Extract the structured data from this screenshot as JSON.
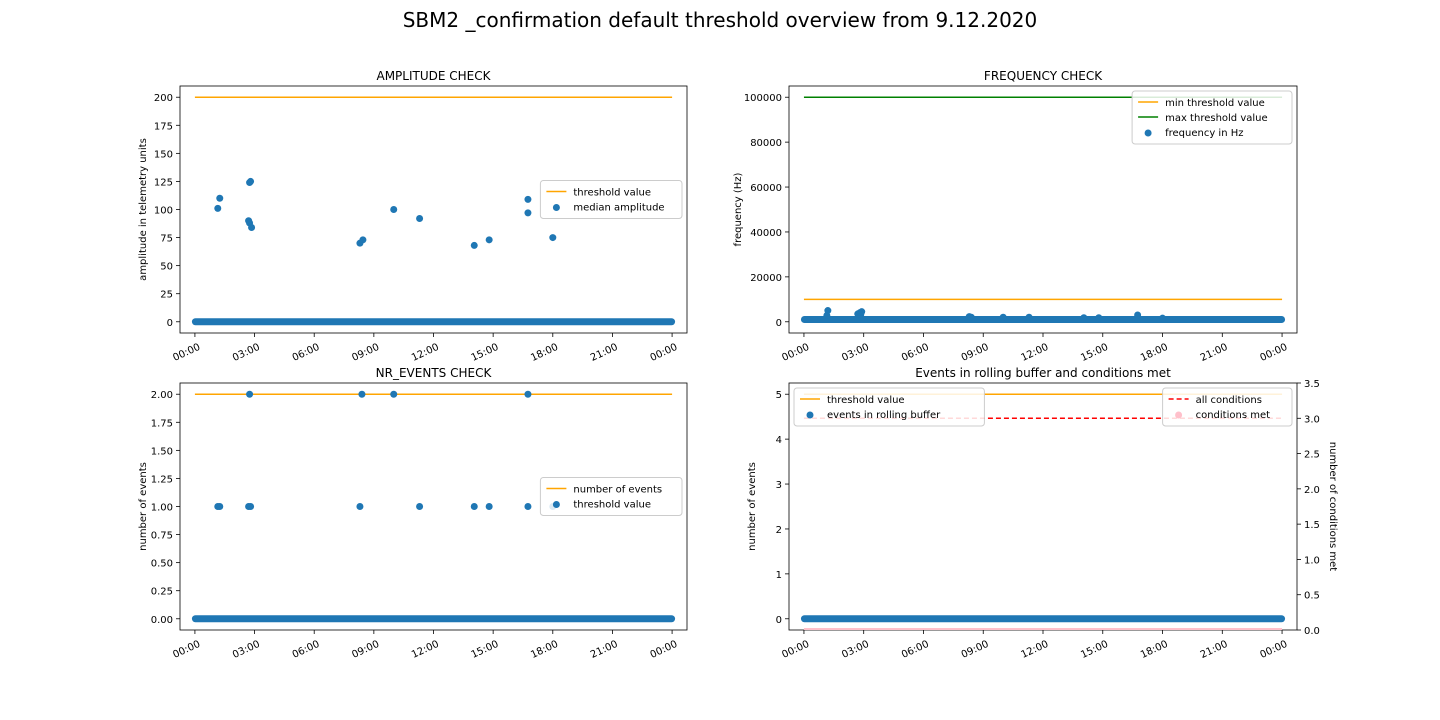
{
  "figure": {
    "suptitle": "SBM2 _confirmation default threshold overview from 9.12.2020"
  },
  "colors": {
    "orange": "#ffa500",
    "green": "#008000",
    "blue": "#1f77b4",
    "red": "#ff0000",
    "pink": "#ffc0cb"
  },
  "chart_data": [
    {
      "id": "amplitude",
      "type": "scatter",
      "title": "AMPLITUDE CHECK",
      "xlabel": "",
      "ylabel": "amplitude in telemetry units",
      "xlim": [
        -0.75,
        24.75
      ],
      "ylim": [
        -10,
        210
      ],
      "yticks": [
        0,
        25,
        50,
        75,
        100,
        125,
        150,
        175,
        200
      ],
      "ytick_labels": [
        "0",
        "25",
        "50",
        "75",
        "100",
        "125",
        "150",
        "175",
        "200"
      ],
      "xticks": [
        0,
        3,
        6,
        9,
        12,
        15,
        18,
        21,
        24
      ],
      "xtick_labels": [
        "00:00",
        "03:00",
        "06:00",
        "09:00",
        "12:00",
        "15:00",
        "18:00",
        "21:00",
        "00:00"
      ],
      "grid": false,
      "legend_position": "center-right",
      "lines": [
        {
          "name": "threshold value",
          "color": "#ffa500",
          "dash": false,
          "x": [
            0,
            24
          ],
          "y": [
            200,
            200
          ]
        }
      ],
      "series": [
        {
          "name": "median amplitude",
          "color": "#1f77b4",
          "baseline": {
            "x_from": 0,
            "x_to": 24,
            "y": 0
          },
          "points": [
            [
              1.15,
              101
            ],
            [
              1.25,
              110
            ],
            [
              2.75,
              124
            ],
            [
              2.8,
              125
            ],
            [
              2.7,
              90
            ],
            [
              2.75,
              88
            ],
            [
              2.85,
              84
            ],
            [
              8.3,
              70
            ],
            [
              8.45,
              73
            ],
            [
              10.0,
              100
            ],
            [
              11.3,
              92
            ],
            [
              14.05,
              68
            ],
            [
              14.8,
              73
            ],
            [
              16.75,
              109
            ],
            [
              16.75,
              97
            ],
            [
              18.0,
              75
            ]
          ]
        }
      ],
      "legend": [
        {
          "label": "threshold value",
          "kind": "line",
          "color": "#ffa500",
          "dash": false
        },
        {
          "label": "median amplitude",
          "kind": "dot",
          "color": "#1f77b4"
        }
      ]
    },
    {
      "id": "frequency",
      "type": "scatter",
      "title": "FREQUENCY CHECK",
      "xlabel": "",
      "ylabel": "frequency (Hz)",
      "xlim": [
        -0.75,
        24.75
      ],
      "ylim": [
        -5000,
        105000
      ],
      "yticks": [
        0,
        20000,
        40000,
        60000,
        80000,
        100000
      ],
      "ytick_labels": [
        "0",
        "20000",
        "40000",
        "60000",
        "80000",
        "100000"
      ],
      "xticks": [
        0,
        3,
        6,
        9,
        12,
        15,
        18,
        21,
        24
      ],
      "xtick_labels": [
        "00:00",
        "03:00",
        "06:00",
        "09:00",
        "12:00",
        "15:00",
        "18:00",
        "21:00",
        "00:00"
      ],
      "grid": false,
      "legend_position": "upper-right",
      "lines": [
        {
          "name": "min threshold value",
          "color": "#ffa500",
          "dash": false,
          "x": [
            0,
            24
          ],
          "y": [
            10000,
            10000
          ]
        },
        {
          "name": "max threshold value",
          "color": "#008000",
          "dash": false,
          "x": [
            0,
            24
          ],
          "y": [
            100000,
            100000
          ]
        }
      ],
      "series": [
        {
          "name": "frequency in Hz",
          "color": "#1f77b4",
          "baseline": {
            "x_from": 0,
            "x_to": 24,
            "y": 1000
          },
          "points": [
            [
              1.2,
              5000
            ],
            [
              1.15,
              2800
            ],
            [
              2.7,
              3500
            ],
            [
              2.8,
              4000
            ],
            [
              2.9,
              4500
            ],
            [
              2.85,
              3200
            ],
            [
              8.3,
              2300
            ],
            [
              8.4,
              2000
            ],
            [
              10.0,
              2000
            ],
            [
              11.3,
              2000
            ],
            [
              14.05,
              1800
            ],
            [
              14.8,
              1800
            ],
            [
              16.75,
              3000
            ],
            [
              18.0,
              1600
            ]
          ]
        }
      ],
      "legend": [
        {
          "label": "min threshold value",
          "kind": "line",
          "color": "#ffa500",
          "dash": false
        },
        {
          "label": "max threshold value",
          "kind": "line",
          "color": "#008000",
          "dash": false
        },
        {
          "label": "frequency in Hz",
          "kind": "dot",
          "color": "#1f77b4"
        }
      ]
    },
    {
      "id": "nr_events",
      "type": "scatter",
      "title": "NR_EVENTS CHECK",
      "xlabel": "",
      "ylabel": "number of events",
      "xlim": [
        -0.75,
        24.75
      ],
      "ylim": [
        -0.1,
        2.1
      ],
      "yticks": [
        0,
        0.25,
        0.5,
        0.75,
        1.0,
        1.25,
        1.5,
        1.75,
        2.0
      ],
      "ytick_labels": [
        "0.00",
        "0.25",
        "0.50",
        "0.75",
        "1.00",
        "1.25",
        "1.50",
        "1.75",
        "2.00"
      ],
      "xticks": [
        0,
        3,
        6,
        9,
        12,
        15,
        18,
        21,
        24
      ],
      "xtick_labels": [
        "00:00",
        "03:00",
        "06:00",
        "09:00",
        "12:00",
        "15:00",
        "18:00",
        "21:00",
        "00:00"
      ],
      "grid": false,
      "legend_position": "center-right",
      "lines": [
        {
          "name": "number of events",
          "color": "#ffa500",
          "dash": false,
          "x": [
            0,
            24
          ],
          "y": [
            2,
            2
          ]
        }
      ],
      "series": [
        {
          "name": "threshold value",
          "color": "#1f77b4",
          "baseline": {
            "x_from": 0,
            "x_to": 24,
            "y": 0
          },
          "points": [
            [
              1.15,
              1
            ],
            [
              1.25,
              1
            ],
            [
              2.7,
              1
            ],
            [
              2.8,
              1
            ],
            [
              2.75,
              2
            ],
            [
              8.3,
              1
            ],
            [
              8.4,
              2
            ],
            [
              10.0,
              2
            ],
            [
              11.3,
              1
            ],
            [
              14.05,
              1
            ],
            [
              14.8,
              1
            ],
            [
              16.75,
              1
            ],
            [
              16.75,
              2
            ],
            [
              18.0,
              1
            ]
          ]
        }
      ],
      "legend": [
        {
          "label": "number of events",
          "kind": "line",
          "color": "#ffa500",
          "dash": false
        },
        {
          "label": "threshold value",
          "kind": "dot",
          "color": "#1f77b4"
        }
      ]
    },
    {
      "id": "rolling_buffer",
      "type": "scatter",
      "title": "Events in rolling buffer and conditions met",
      "xlabel": "",
      "ylabel": "number of events",
      "ylabel_right": "number of conditions met",
      "xlim": [
        -0.75,
        24.75
      ],
      "ylim": [
        -0.25,
        5.25
      ],
      "ylim_right": [
        0,
        3.5
      ],
      "yticks": [
        0,
        1,
        2,
        3,
        4,
        5
      ],
      "ytick_labels": [
        "0",
        "1",
        "2",
        "3",
        "4",
        "5"
      ],
      "yticks_right": [
        0,
        0.5,
        1.0,
        1.5,
        2.0,
        2.5,
        3.0,
        3.5
      ],
      "ytick_labels_right": [
        "0.0",
        "0.5",
        "1.0",
        "1.5",
        "2.0",
        "2.5",
        "3.0",
        "3.5"
      ],
      "xticks": [
        0,
        3,
        6,
        9,
        12,
        15,
        18,
        21,
        24
      ],
      "xtick_labels": [
        "00:00",
        "03:00",
        "06:00",
        "09:00",
        "12:00",
        "15:00",
        "18:00",
        "21:00",
        "00:00"
      ],
      "grid": false,
      "legend_position": "upper-left / upper-right",
      "lines": [
        {
          "name": "threshold value",
          "color": "#ffa500",
          "dash": false,
          "axis": "left",
          "x": [
            0,
            24
          ],
          "y": [
            5,
            5
          ]
        },
        {
          "name": "all conditions",
          "color": "#ff0000",
          "dash": true,
          "axis": "right",
          "x": [
            0,
            24
          ],
          "y": [
            3,
            3
          ]
        }
      ],
      "series": [
        {
          "name": "events in rolling buffer",
          "color": "#1f77b4",
          "axis": "left",
          "baseline": {
            "x_from": 0,
            "x_to": 24,
            "y": 0
          },
          "points": []
        },
        {
          "name": "conditions met",
          "color": "#ffc0cb",
          "axis": "right",
          "baseline": {
            "x_from": 0,
            "x_to": 24,
            "y": 0
          },
          "points": []
        }
      ],
      "legend": [
        {
          "label": "threshold value",
          "kind": "line",
          "color": "#ffa500",
          "dash": false
        },
        {
          "label": "events in rolling buffer",
          "kind": "dot",
          "color": "#1f77b4"
        }
      ],
      "legend_right": [
        {
          "label": "all conditions",
          "kind": "line",
          "color": "#ff0000",
          "dash": true
        },
        {
          "label": "conditions met",
          "kind": "dot",
          "color": "#ffc0cb"
        }
      ]
    }
  ]
}
